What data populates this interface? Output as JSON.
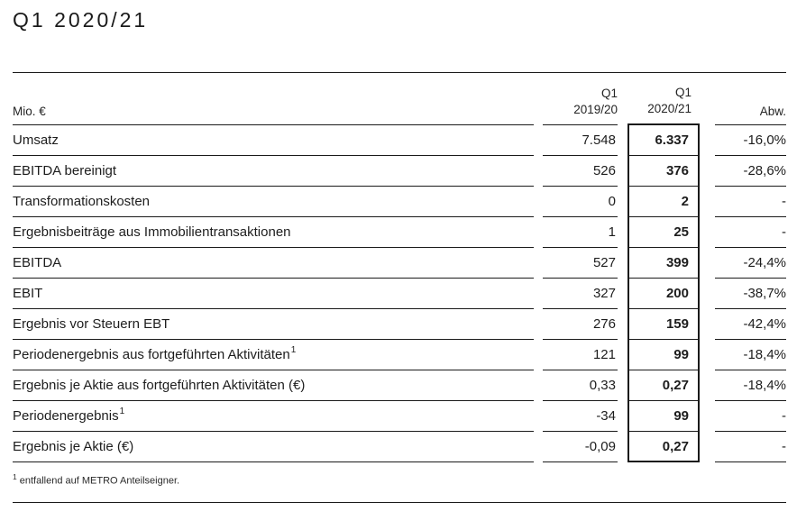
{
  "page": {
    "title": "Q1 2020/21"
  },
  "table": {
    "unit_label": "Mio. €",
    "columns": {
      "prev": {
        "line1": "Q1",
        "line2": "2019/20"
      },
      "curr": {
        "line1": "Q1",
        "line2": "2020/21"
      },
      "abw": {
        "label": "Abw."
      }
    },
    "rows": [
      {
        "label": "Umsatz",
        "sup": "",
        "prev": "7.548",
        "curr": "6.337",
        "abw": "-16,0%"
      },
      {
        "label": "EBITDA bereinigt",
        "sup": "",
        "prev": "526",
        "curr": "376",
        "abw": "-28,6%"
      },
      {
        "label": "Transformationskosten",
        "sup": "",
        "prev": "0",
        "curr": "2",
        "abw": "-"
      },
      {
        "label": "Ergebnisbeiträge aus Immobilientransaktionen",
        "sup": "",
        "prev": "1",
        "curr": "25",
        "abw": "-"
      },
      {
        "label": "EBITDA",
        "sup": "",
        "prev": "527",
        "curr": "399",
        "abw": "-24,4%"
      },
      {
        "label": "EBIT",
        "sup": "",
        "prev": "327",
        "curr": "200",
        "abw": "-38,7%"
      },
      {
        "label": "Ergebnis vor Steuern EBT",
        "sup": "",
        "prev": "276",
        "curr": "159",
        "abw": "-42,4%"
      },
      {
        "label": "Periodenergebnis aus fortgeführten Aktivitäten",
        "sup": "1",
        "prev": "121",
        "curr": "99",
        "abw": "-18,4%"
      },
      {
        "label": "Ergebnis je Aktie aus fortgeführten Aktivitäten (€)",
        "sup": "",
        "prev": "0,33",
        "curr": "0,27",
        "abw": "-18,4%"
      },
      {
        "label": "Periodenergebnis",
        "sup": "1",
        "prev": "-34",
        "curr": "99",
        "abw": "-"
      },
      {
        "label": "Ergebnis je Aktie (€)",
        "sup": "",
        "prev": "-0,09",
        "curr": "0,27",
        "abw": "-"
      }
    ],
    "footnote_marker": "1",
    "footnote_text": "entfallend auf METRO Anteilseigner."
  },
  "colors": {
    "text": "#1d1d1d",
    "rule": "#1a1a1a",
    "background": "#ffffff"
  }
}
